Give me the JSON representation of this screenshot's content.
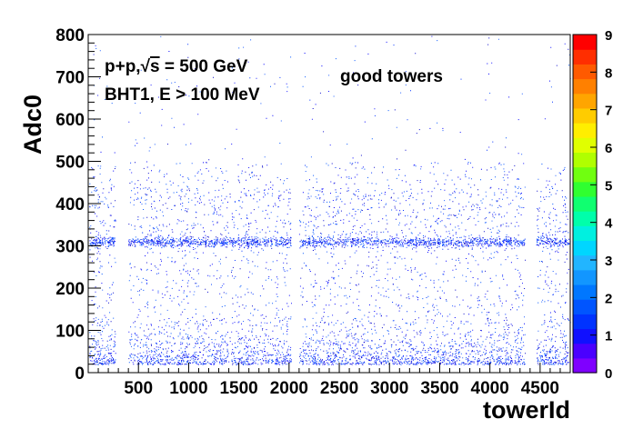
{
  "chart_data": {
    "type": "heatmap",
    "title": "",
    "xlabel": "towerId",
    "ylabel": "Adc0",
    "xlim": [
      0,
      4800
    ],
    "ylim": [
      0,
      800
    ],
    "x_ticks": [
      500,
      1000,
      1500,
      2000,
      2500,
      3000,
      3500,
      4000,
      4500
    ],
    "x_tick_labels": [
      "500",
      "1000",
      "1500",
      "2000",
      "2500",
      "3000",
      "3500",
      "4000",
      "4500"
    ],
    "y_ticks": [
      0,
      100,
      200,
      300,
      400,
      500,
      600,
      700,
      800
    ],
    "y_tick_labels": [
      "0",
      "100",
      "200",
      "300",
      "400",
      "500",
      "600",
      "700",
      "800"
    ],
    "z_range": [
      0,
      9
    ],
    "z_tick_labels": [
      "0",
      "1",
      "2",
      "3",
      "4",
      "5",
      "6",
      "7",
      "8",
      "9"
    ],
    "annotations": {
      "line1_prefix": "p+p,",
      "sqrt_symbol": "√",
      "line1_s": "s",
      "line1_suffix": " = 500 GeV",
      "line2": "BHT1, E > 100 MeV",
      "label": "good towers"
    },
    "empty_tower_ranges": [
      [
        270,
        400
      ],
      [
        2020,
        2100
      ],
      [
        4350,
        4460
      ]
    ],
    "dense_band_adc_range": [
      20,
      120
    ],
    "secondary_band_adc": 310,
    "grid": false,
    "legend": "color-scale-right"
  }
}
